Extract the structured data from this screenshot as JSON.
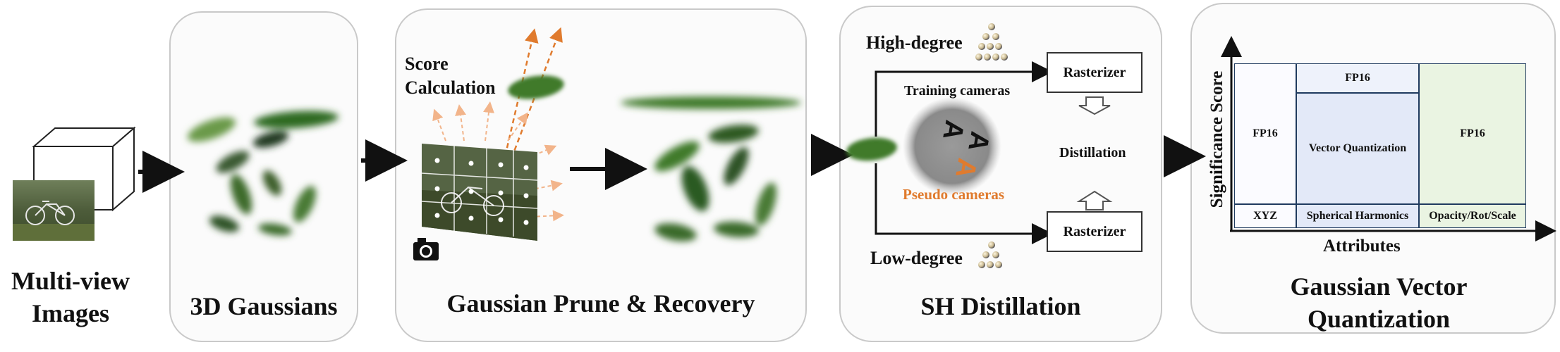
{
  "panels": {
    "input": {
      "title": "Multi-view Images"
    },
    "gaussians": {
      "title": "3D Gaussians"
    },
    "prune": {
      "title": "Gaussian Prune & Recovery",
      "score_label": "Score Calculation"
    },
    "sh": {
      "title": "SH Distillation",
      "high_degree": "High-degree",
      "low_degree": "Low-degree",
      "rasterizer_top": "Rasterizer",
      "rasterizer_bottom": "Rasterizer",
      "training_cameras": "Training cameras",
      "pseudo_cameras": "Pseudo cameras",
      "distillation": "Distillation"
    },
    "vq": {
      "title": "Gaussian Vector Quantization",
      "y_axis": "Significance Score",
      "x_axis": "Attributes",
      "cells": {
        "fp16_left": "FP16",
        "xyz": "XYZ",
        "fp16_mid": "FP16",
        "vector_quant": "Vector Quantization",
        "sh": "Spherical Harmonics",
        "fp16_right": "FP16",
        "opacity": "Opacity/Rot/Scale"
      }
    }
  },
  "colors": {
    "gaussian_green": "#3f7a2c",
    "orange": "#e07b2e",
    "panel_border": "#c9c9c9",
    "axis": "#1f3a5f"
  }
}
